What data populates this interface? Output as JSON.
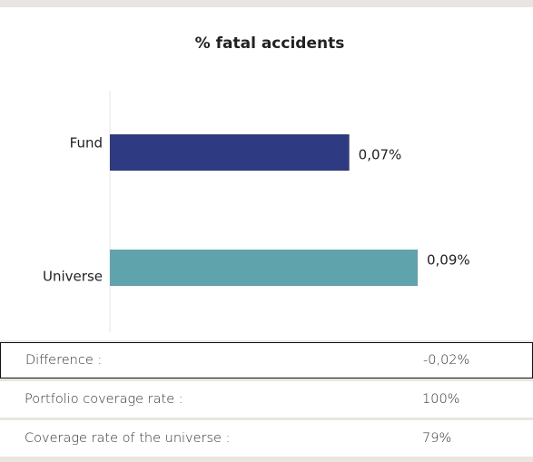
{
  "chart_data": {
    "type": "hbar",
    "title": "% fatal accidents",
    "categories": [
      "Fund",
      "Universe"
    ],
    "values": [
      0.07,
      0.09
    ],
    "value_labels": [
      "0,07%",
      "0,09%"
    ],
    "colors": [
      "#2e3b82",
      "#5fa3ad"
    ]
  },
  "table": {
    "rows": [
      [
        "Difference :",
        "-0,02%"
      ],
      [
        "Portfolio coverage rate :",
        "100%"
      ],
      [
        "Coverage rate of the universe :",
        "79%"
      ]
    ]
  }
}
